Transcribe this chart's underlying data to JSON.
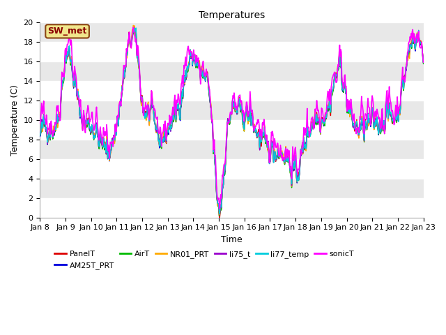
{
  "title": "Temperatures",
  "xlabel": "Time",
  "ylabel": "Temperature (C)",
  "ylim": [
    0,
    20
  ],
  "yticks": [
    0,
    2,
    4,
    6,
    8,
    10,
    12,
    14,
    16,
    18,
    20
  ],
  "background_color": "#e8e8e8",
  "plot_bg_color": "#e8e8e8",
  "series": {
    "PanelT": {
      "color": "#dd0000",
      "lw": 1.0
    },
    "AM25T_PRT": {
      "color": "#0000dd",
      "lw": 1.0
    },
    "AirT": {
      "color": "#00bb00",
      "lw": 1.0
    },
    "NR01_PRT": {
      "color": "#ffaa00",
      "lw": 1.0
    },
    "li75_t": {
      "color": "#9900cc",
      "lw": 1.0
    },
    "li77_temp": {
      "color": "#00ccdd",
      "lw": 1.0
    },
    "sonicT": {
      "color": "#ff00ff",
      "lw": 1.2
    }
  },
  "xtick_labels": [
    "Jan 8",
    "Jan 9",
    "Jan 10",
    "Jan 11",
    "Jan 12",
    "Jan 13",
    "Jan 14",
    "Jan 15",
    "Jan 16",
    "Jan 17",
    "Jan 18",
    "Jan 19",
    "Jan 20",
    "Jan 21",
    "Jan 22",
    "Jan 23"
  ],
  "annotation_text": "SW_met",
  "annotation_color": "#8B0000",
  "annotation_bg": "#f0e68c",
  "annotation_edge": "#8B4513",
  "title_fontsize": 10,
  "axis_fontsize": 9,
  "tick_fontsize": 8,
  "legend_fontsize": 8,
  "grid_color": "white",
  "grid_lw": 1.0
}
